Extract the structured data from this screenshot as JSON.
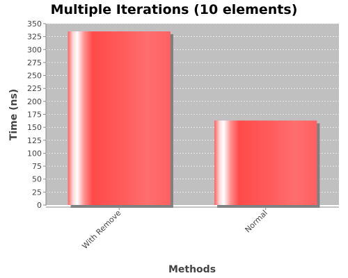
{
  "chart_data": {
    "type": "bar",
    "title": "Multiple Iterations (10 elements)",
    "xlabel": "Methods",
    "ylabel": "Time (ns)",
    "categories": [
      "With Remove",
      "Normal"
    ],
    "values": [
      335,
      163
    ],
    "ylim": [
      0,
      350
    ],
    "yticks": [
      0,
      25,
      50,
      75,
      100,
      125,
      150,
      175,
      200,
      225,
      250,
      275,
      300,
      325,
      350
    ],
    "grid": true,
    "legend": "none",
    "colors": {
      "plot_background": "#c0c0c0",
      "bar": "#ff5a5a",
      "bar_shadow": "#808080",
      "gridline": "#ffffff",
      "axis": "#888888"
    }
  }
}
